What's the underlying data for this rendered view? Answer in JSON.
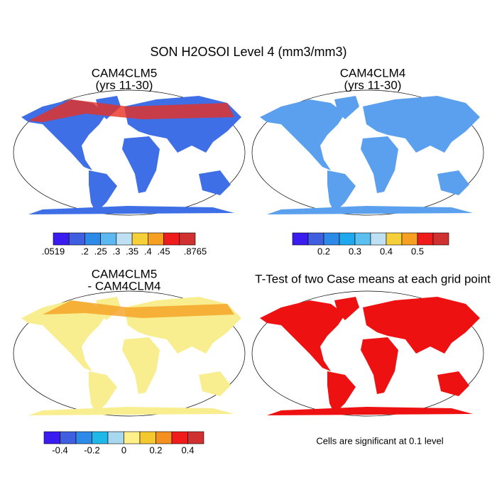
{
  "title": "SON H2OSOI Level 4 (mm3/mm3)",
  "panels": [
    {
      "title_lines": [
        "CAM4CLM5",
        "(yrs 11-30)"
      ],
      "colorbar": {
        "colors": [
          "#3a1cf0",
          "#3f5fe0",
          "#2d8ae8",
          "#5bb8f0",
          "#bfe0f2",
          "#f5d03a",
          "#f5a020",
          "#f01c1c",
          "#d03030"
        ],
        "labels": [
          ".0519",
          null,
          ".2",
          ".25",
          ".3",
          ".35",
          ".4",
          ".45",
          null,
          ".8765"
        ]
      }
    },
    {
      "title_lines": [
        "CAM4CLM4",
        "(yrs 11-30)"
      ],
      "colorbar": {
        "colors": [
          "#3a1cf0",
          "#3f5fe0",
          "#2d8ae8",
          "#1fa8ee",
          "#5bc0f0",
          "#bfe0f2",
          "#f5d03a",
          "#f5a020",
          "#f01c1c",
          "#d03030"
        ],
        "labels": [
          null,
          null,
          "0.2",
          null,
          "0.3",
          null,
          "0.4",
          null,
          "0.5",
          null,
          null
        ]
      }
    },
    {
      "title_lines": [
        "CAM4CLM5",
        "- CAM4CLM4"
      ],
      "colorbar": {
        "colors": [
          "#3a1cf0",
          "#3f5fe0",
          "#2d8ae8",
          "#1fb8e8",
          "#a8d8f0",
          "#fff08a",
          "#f5c830",
          "#f59020",
          "#f01c1c",
          "#d03030"
        ],
        "labels": [
          null,
          "-0.4",
          null,
          "-0.2",
          null,
          "0",
          null,
          "0.2",
          null,
          "0.4",
          null
        ]
      }
    },
    {
      "title_lines": [
        "T-Test of two Case means at each grid point"
      ],
      "note": "Cells are significant at 0.1 level"
    }
  ]
}
